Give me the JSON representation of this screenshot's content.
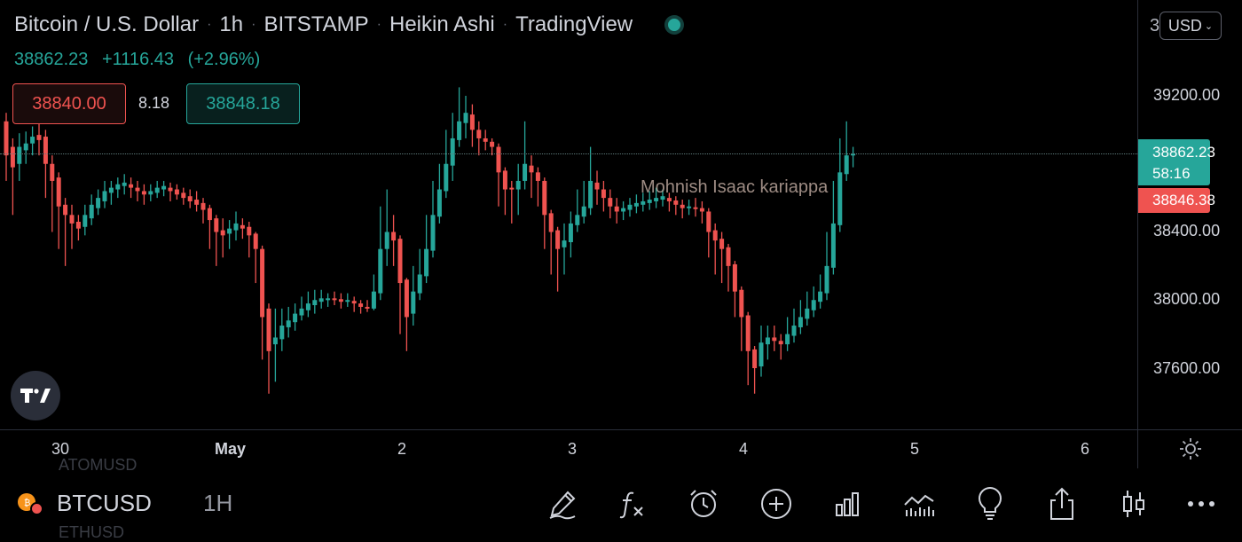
{
  "header": {
    "symbol_name": "Bitcoin / U.S. Dollar",
    "interval": "1h",
    "exchange": "BITSTAMP",
    "chart_style": "Heikin Ashi",
    "provider": "TradingView",
    "status_color": "#26a69a"
  },
  "quote": {
    "last": "38862.23",
    "change": "+1116.43",
    "change_pct": "(+2.96%)"
  },
  "trade": {
    "sell_price": "38840.00",
    "spread": "8.18",
    "buy_price": "38848.18"
  },
  "currency": {
    "label": "USD",
    "partial_digit": "3"
  },
  "price_axis": {
    "labels": [
      "39200.00",
      "38400.00",
      "38000.00",
      "37600.00"
    ],
    "current_price": "38862.23",
    "countdown": "58:16",
    "bid_price": "38846.38"
  },
  "time_axis": {
    "labels": [
      "30",
      "May",
      "2",
      "3",
      "4",
      "5",
      "6"
    ]
  },
  "watermark": {
    "name": "Mohnish Isaac kariappa"
  },
  "bottom_bar": {
    "symbol": "BTCUSD",
    "timeframe": "1H",
    "ghost_top": "ATOMUSD",
    "ghost_bottom": "ETHUSD",
    "tools": [
      "pen-icon",
      "function-icon",
      "alarm-clock-icon",
      "plus-circle-icon",
      "bar-chart-icon",
      "indicators-icon",
      "lightbulb-icon",
      "share-icon",
      "candles-icon",
      "more-icon"
    ]
  },
  "colors": {
    "up": "#26a69a",
    "down": "#ef5350",
    "background": "#000000",
    "text": "#d1d4dc"
  },
  "chart_data": {
    "type": "candlestick",
    "style": "Heikin Ashi",
    "x_labels": [
      "30",
      "May",
      "2",
      "3",
      "4",
      "5",
      "6"
    ],
    "ylim": [
      37350,
      39450
    ],
    "last_price": 38862.23,
    "candles": [
      [
        39050,
        38850,
        39100,
        38700
      ],
      [
        38900,
        38780,
        38950,
        38500
      ],
      [
        38800,
        38900,
        38980,
        38700
      ],
      [
        38880,
        38920,
        38990,
        38800
      ],
      [
        38920,
        38960,
        39020,
        38850
      ],
      [
        38970,
        38940,
        39100,
        38850
      ],
      [
        38960,
        38800,
        39000,
        38600
      ],
      [
        38800,
        38700,
        38850,
        38400
      ],
      [
        38720,
        38550,
        38750,
        38300
      ],
      [
        38560,
        38500,
        38600,
        38200
      ],
      [
        38500,
        38450,
        38560,
        38300
      ],
      [
        38460,
        38420,
        38500,
        38350
      ],
      [
        38430,
        38500,
        38560,
        38380
      ],
      [
        38480,
        38560,
        38620,
        38440
      ],
      [
        38540,
        38600,
        38650,
        38500
      ],
      [
        38580,
        38640,
        38700,
        38540
      ],
      [
        38630,
        38660,
        38700,
        38560
      ],
      [
        38650,
        38680,
        38720,
        38600
      ],
      [
        38670,
        38690,
        38740,
        38620
      ],
      [
        38680,
        38660,
        38720,
        38600
      ],
      [
        38660,
        38640,
        38700,
        38580
      ],
      [
        38640,
        38620,
        38680,
        38560
      ],
      [
        38620,
        38640,
        38680,
        38580
      ],
      [
        38630,
        38660,
        38700,
        38600
      ],
      [
        38650,
        38670,
        38700,
        38610
      ],
      [
        38660,
        38640,
        38690,
        38580
      ],
      [
        38650,
        38620,
        38680,
        38590
      ],
      [
        38630,
        38600,
        38660,
        38560
      ],
      [
        38610,
        38580,
        38650,
        38540
      ],
      [
        38590,
        38560,
        38640,
        38520
      ],
      [
        38570,
        38530,
        38600,
        38450
      ],
      [
        38540,
        38470,
        38560,
        38300
      ],
      [
        38480,
        38400,
        38500,
        38200
      ],
      [
        38410,
        38380,
        38480,
        38250
      ],
      [
        38390,
        38420,
        38470,
        38300
      ],
      [
        38410,
        38450,
        38520,
        38350
      ],
      [
        38440,
        38420,
        38480,
        38360
      ],
      [
        38430,
        38380,
        38460,
        38250
      ],
      [
        38390,
        38300,
        38400,
        38100
      ],
      [
        38300,
        37900,
        38320,
        37650
      ],
      [
        37950,
        37700,
        37980,
        37450
      ],
      [
        37740,
        37780,
        37950,
        37520
      ],
      [
        37770,
        37850,
        37950,
        37700
      ],
      [
        37840,
        37880,
        37960,
        37780
      ],
      [
        37870,
        37920,
        37980,
        37820
      ],
      [
        37910,
        37950,
        38020,
        37880
      ],
      [
        37940,
        37980,
        38050,
        37900
      ],
      [
        37970,
        38000,
        38060,
        37920
      ],
      [
        37990,
        38010,
        38060,
        37950
      ],
      [
        38000,
        38010,
        38040,
        37960
      ],
      [
        38010,
        38000,
        38050,
        37970
      ],
      [
        38005,
        37990,
        38040,
        37950
      ],
      [
        37990,
        38000,
        38040,
        37960
      ],
      [
        37995,
        37980,
        38020,
        37930
      ],
      [
        37980,
        37960,
        38000,
        37920
      ],
      [
        37960,
        37950,
        38000,
        37930
      ],
      [
        37950,
        38050,
        38150,
        37940
      ],
      [
        38040,
        38300,
        38550,
        38000
      ],
      [
        38300,
        38400,
        38650,
        38200
      ],
      [
        38400,
        38350,
        38500,
        38200
      ],
      [
        38360,
        38100,
        38380,
        37800
      ],
      [
        38120,
        37900,
        38130,
        37700
      ],
      [
        37920,
        38050,
        38200,
        37850
      ],
      [
        38040,
        38150,
        38300,
        38000
      ],
      [
        38140,
        38300,
        38500,
        38100
      ],
      [
        38290,
        38500,
        38700,
        38250
      ],
      [
        38490,
        38650,
        38800,
        38450
      ],
      [
        38640,
        38800,
        39000,
        38600
      ],
      [
        38790,
        38950,
        39100,
        38700
      ],
      [
        38940,
        39050,
        39250,
        38900
      ],
      [
        39040,
        39100,
        39200,
        38950
      ],
      [
        39090,
        39000,
        39150,
        38900
      ],
      [
        39000,
        38950,
        39050,
        38850
      ],
      [
        38950,
        38930,
        39000,
        38880
      ],
      [
        38930,
        38900,
        38950,
        38850
      ],
      [
        38900,
        38750,
        38920,
        38550
      ],
      [
        38760,
        38650,
        38780,
        38500
      ],
      [
        38660,
        38650,
        38700,
        38450
      ],
      [
        38650,
        38700,
        38800,
        38500
      ],
      [
        38700,
        38800,
        39050,
        38650
      ],
      [
        38790,
        38750,
        38850,
        38600
      ],
      [
        38750,
        38700,
        38780,
        38550
      ],
      [
        38700,
        38500,
        38720,
        38300
      ],
      [
        38510,
        38400,
        38530,
        38150
      ],
      [
        38410,
        38300,
        38430,
        38050
      ],
      [
        38310,
        38350,
        38450,
        38150
      ],
      [
        38340,
        38450,
        38520,
        38250
      ],
      [
        38440,
        38500,
        38650,
        38400
      ],
      [
        38490,
        38550,
        38700,
        38450
      ],
      [
        38540,
        38700,
        38900,
        38500
      ],
      [
        38690,
        38650,
        38760,
        38560
      ],
      [
        38650,
        38600,
        38700,
        38520
      ],
      [
        38600,
        38550,
        38650,
        38480
      ],
      [
        38550,
        38520,
        38600,
        38450
      ],
      [
        38520,
        38540,
        38580,
        38470
      ],
      [
        38530,
        38560,
        38600,
        38490
      ],
      [
        38550,
        38570,
        38620,
        38510
      ],
      [
        38560,
        38580,
        38630,
        38520
      ],
      [
        38570,
        38590,
        38640,
        38530
      ],
      [
        38580,
        38600,
        38660,
        38540
      ],
      [
        38590,
        38610,
        38650,
        38550
      ],
      [
        38600,
        38580,
        38630,
        38520
      ],
      [
        38585,
        38560,
        38610,
        38500
      ],
      [
        38560,
        38540,
        38590,
        38480
      ],
      [
        38540,
        38550,
        38590,
        38500
      ],
      [
        38545,
        38540,
        38600,
        38490
      ],
      [
        38540,
        38520,
        38580,
        38450
      ],
      [
        38520,
        38400,
        38540,
        38250
      ],
      [
        38410,
        38350,
        38450,
        38150
      ],
      [
        38360,
        38300,
        38400,
        38100
      ],
      [
        38310,
        38200,
        38330,
        38050
      ],
      [
        38210,
        38050,
        38230,
        37900
      ],
      [
        38060,
        37900,
        38080,
        37700
      ],
      [
        37910,
        37700,
        37930,
        37500
      ],
      [
        37710,
        37600,
        37730,
        37450
      ],
      [
        37610,
        37750,
        37850,
        37550
      ],
      [
        37740,
        37780,
        37850,
        37650
      ],
      [
        37780,
        37760,
        37850,
        37700
      ],
      [
        37760,
        37740,
        37800,
        37650
      ],
      [
        37740,
        37800,
        37900,
        37700
      ],
      [
        37790,
        37850,
        37950,
        37750
      ],
      [
        37840,
        37900,
        38000,
        37800
      ],
      [
        37890,
        37950,
        38050,
        37850
      ],
      [
        37940,
        38000,
        38080,
        37900
      ],
      [
        37990,
        38050,
        38150,
        37950
      ],
      [
        38040,
        38200,
        38400,
        38000
      ],
      [
        38190,
        38450,
        38700,
        38150
      ],
      [
        38440,
        38750,
        38950,
        38400
      ],
      [
        38740,
        38850,
        39050,
        38700
      ],
      [
        38850,
        38860,
        38900,
        38780
      ]
    ]
  }
}
